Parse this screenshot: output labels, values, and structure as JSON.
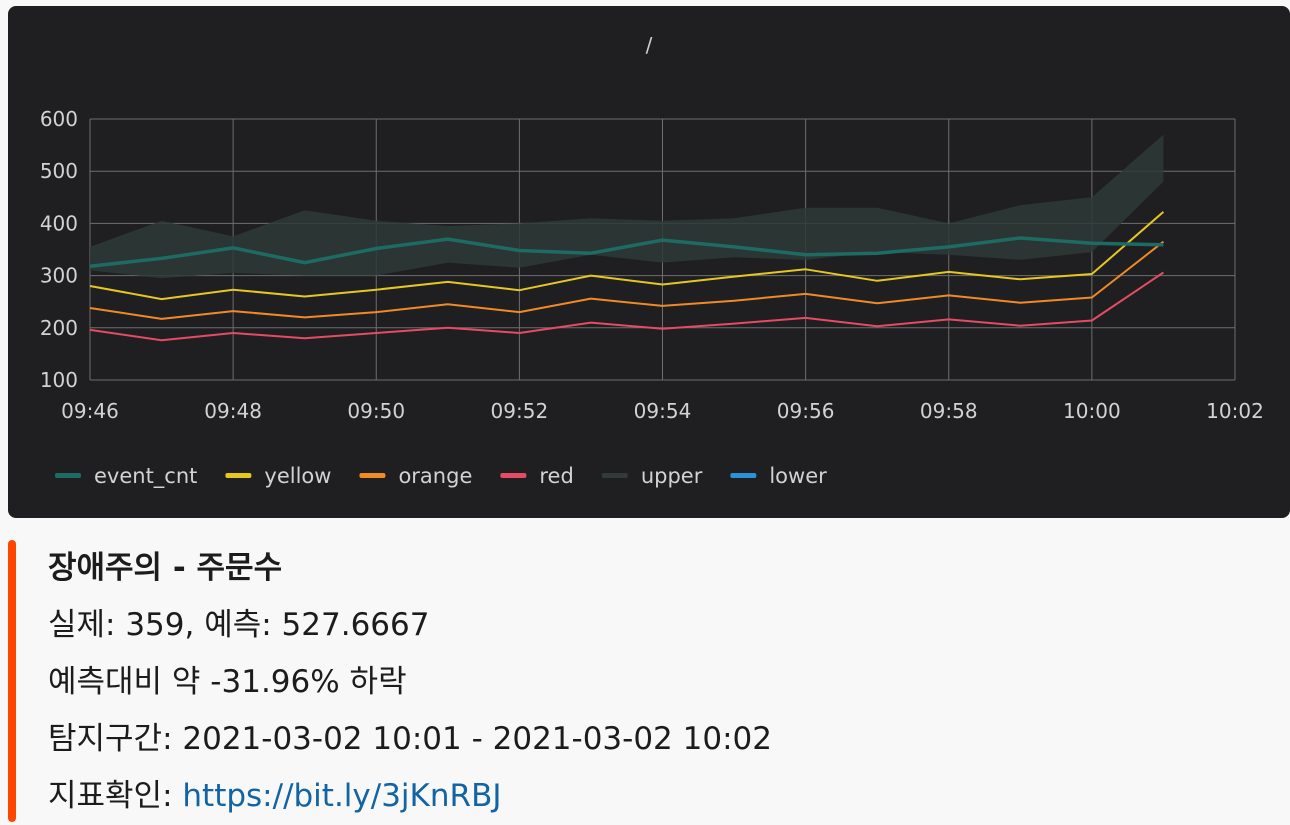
{
  "chart_data": {
    "type": "line",
    "title": "/",
    "x": [
      "09:46",
      "09:47",
      "09:48",
      "09:49",
      "09:50",
      "09:51",
      "09:52",
      "09:53",
      "09:54",
      "09:55",
      "09:56",
      "09:57",
      "09:58",
      "09:59",
      "10:00",
      "10:01"
    ],
    "x_ticks": [
      "09:46",
      "09:48",
      "09:50",
      "09:52",
      "09:54",
      "09:56",
      "09:58",
      "10:00",
      "10:02"
    ],
    "ylim": [
      100,
      600
    ],
    "y_ticks": [
      100,
      200,
      300,
      400,
      500,
      600
    ],
    "grid": true,
    "legend_position": "bottom-left",
    "band": {
      "name": "upper",
      "upper": [
        355,
        405,
        375,
        425,
        405,
        395,
        400,
        410,
        405,
        410,
        430,
        430,
        400,
        435,
        450,
        570
      ],
      "lower": [
        310,
        295,
        305,
        300,
        300,
        325,
        315,
        340,
        325,
        335,
        330,
        345,
        340,
        330,
        345,
        480
      ]
    },
    "series": [
      {
        "name": "event_cnt",
        "color": "#1d6b63",
        "width": 3.5,
        "values": [
          318,
          333,
          353,
          325,
          352,
          370,
          348,
          343,
          368,
          355,
          340,
          343,
          355,
          372,
          362,
          359
        ]
      },
      {
        "name": "yellow",
        "color": "#e6c720",
        "width": 2,
        "values": [
          280,
          255,
          273,
          260,
          273,
          288,
          272,
          300,
          283,
          298,
          312,
          290,
          307,
          293,
          303,
          422
        ]
      },
      {
        "name": "orange",
        "color": "#f08a24",
        "width": 2,
        "values": [
          238,
          217,
          232,
          220,
          230,
          245,
          230,
          256,
          242,
          252,
          265,
          247,
          262,
          248,
          258,
          365
        ]
      },
      {
        "name": "red",
        "color": "#e54b64",
        "width": 2,
        "values": [
          196,
          176,
          190,
          180,
          190,
          200,
          190,
          210,
          198,
          208,
          219,
          203,
          216,
          204,
          214,
          306
        ]
      }
    ],
    "legend": [
      {
        "name": "event_cnt",
        "color": "#1d6b63"
      },
      {
        "name": "yellow",
        "color": "#e6c720"
      },
      {
        "name": "orange",
        "color": "#f08a24"
      },
      {
        "name": "red",
        "color": "#e54b64"
      },
      {
        "name": "upper",
        "color": "#333b38"
      },
      {
        "name": "lower",
        "color": "#2f8fd8"
      }
    ]
  },
  "colors": {
    "panel_bg": "#1f1f21",
    "grid": "#6e6e6e",
    "band_fill": "#2e3a36",
    "alert_bar": "#ff4500",
    "link": "#1264a3"
  },
  "message": {
    "title": "장애주의 - 주문수",
    "actual_line": "실제: 359, 예측: 527.6667",
    "change_line": "예측대비 약 -31.96% 하락",
    "interval_line": "탐지구간: 2021-03-02 10:01 - 2021-03-02 10:02",
    "link_label": "지표확인: ",
    "link_text": "https://bit.ly/3jKnRBJ"
  }
}
